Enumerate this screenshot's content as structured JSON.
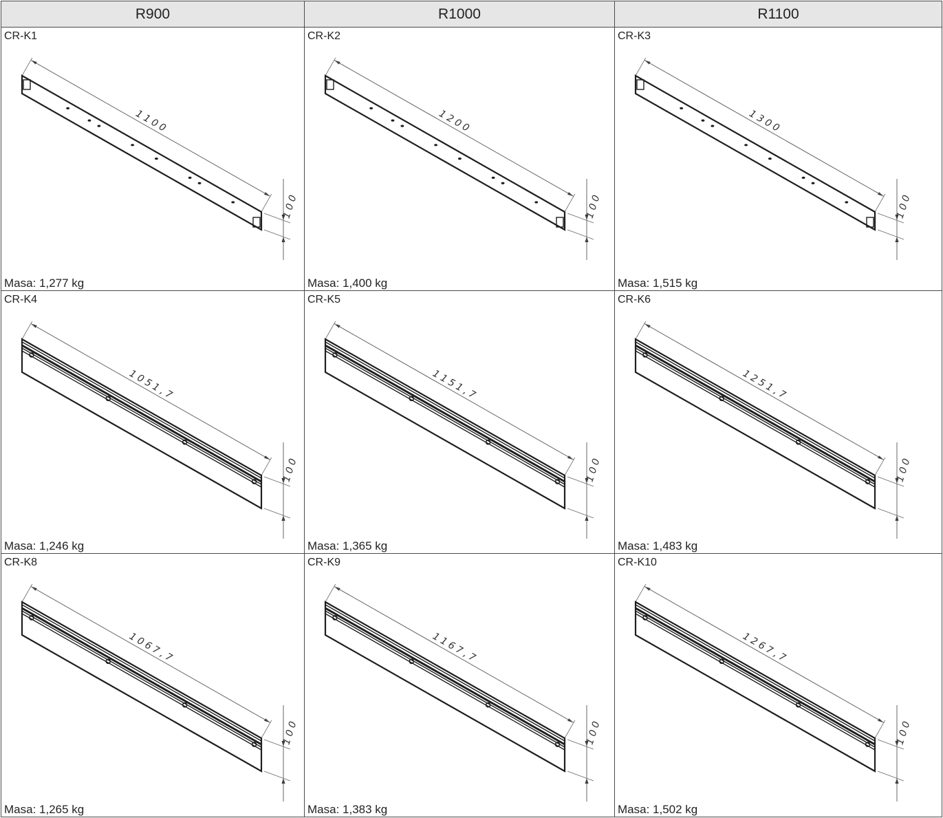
{
  "headers": [
    "R900",
    "R1000",
    "R1100"
  ],
  "rows": [
    [
      {
        "code": "CR-K1",
        "length": "1100",
        "height": "100",
        "mass": "Masa: 1,277 kg"
      },
      {
        "code": "CR-K2",
        "length": "1200",
        "height": "100",
        "mass": "Masa: 1,400 kg"
      },
      {
        "code": "CR-K3",
        "length": "1300",
        "height": "100",
        "mass": "Masa: 1,515 kg"
      }
    ],
    [
      {
        "code": "CR-K4",
        "length": "1051,7",
        "height": "100",
        "mass": "Masa: 1,246 kg"
      },
      {
        "code": "CR-K5",
        "length": "1151,7",
        "height": "100",
        "mass": "Masa: 1,365 kg"
      },
      {
        "code": "CR-K6",
        "length": "1251,7",
        "height": "100",
        "mass": "Masa: 1,483 kg"
      }
    ],
    [
      {
        "code": "CR-K8",
        "length": "1067,7",
        "height": "100",
        "mass": "Masa: 1,265 kg"
      },
      {
        "code": "CR-K9",
        "length": "1167,7",
        "height": "100",
        "mass": "Masa:  1,383 kg"
      },
      {
        "code": "CR-K10",
        "length": "1267,7",
        "height": "100",
        "mass": "Masa: 1,502 kg"
      }
    ]
  ]
}
